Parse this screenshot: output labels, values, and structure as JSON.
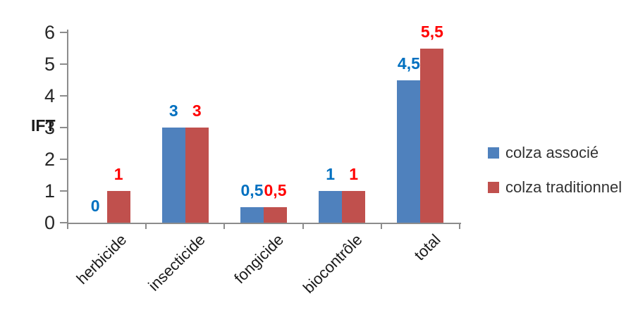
{
  "chart_data": {
    "type": "bar",
    "title": "",
    "ylabel": "IFT",
    "xlabel": "",
    "categories": [
      "herbicide",
      "insecticide",
      "fongicide",
      "biocontrôle",
      "total"
    ],
    "series": [
      {
        "name": "colza associé",
        "color": "#4F81BD",
        "label_color": "#0070C0",
        "values": [
          0,
          3,
          0.5,
          1,
          4.5
        ],
        "labels": [
          "0",
          "3",
          "0,5",
          "1",
          "4,5"
        ]
      },
      {
        "name": "colza traditionnel",
        "color": "#C0504D",
        "label_color": "#FF0000",
        "values": [
          1,
          3,
          0.5,
          1,
          5.5
        ],
        "labels": [
          "1",
          "3",
          "0,5",
          "1",
          "5,5"
        ]
      }
    ],
    "ylim": [
      0,
      6
    ],
    "ytick_step": 1,
    "yticks": [
      0,
      1,
      2,
      3,
      4,
      5,
      6
    ],
    "decimal_separator": ",",
    "grid": false,
    "legend_position": "right",
    "axis_color": "#8C8C8C",
    "background_color": "#FFFFFF"
  }
}
